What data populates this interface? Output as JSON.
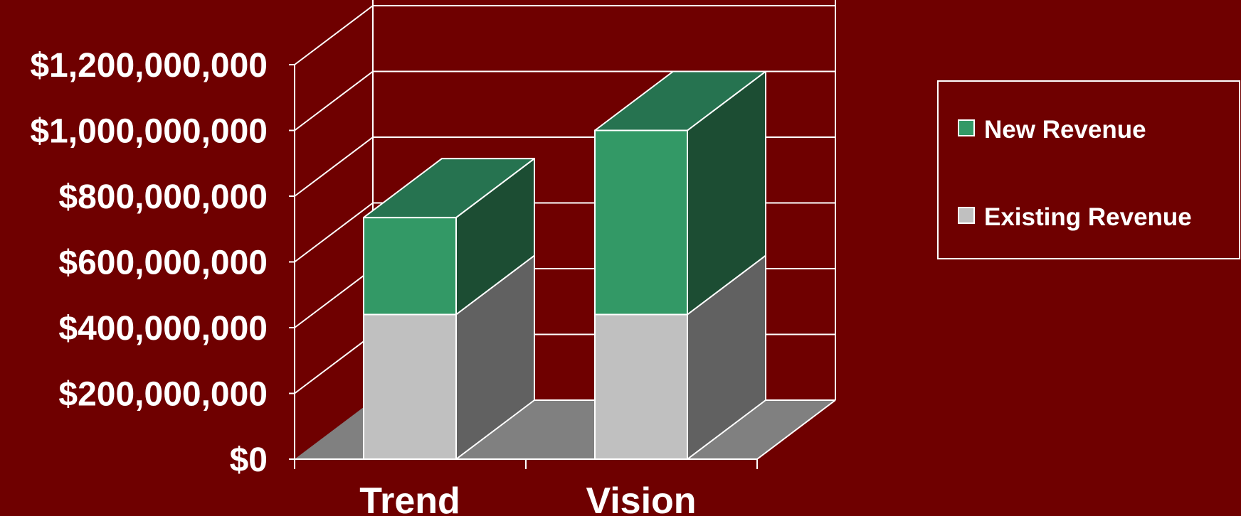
{
  "chart_data": {
    "type": "bar",
    "stacked": true,
    "three_d": true,
    "categories": [
      "Trend",
      "Vision"
    ],
    "series": [
      {
        "name": "Existing Revenue",
        "values": [
          440000000,
          440000000
        ],
        "color": "#c0c0c0",
        "side_color": "#616161"
      },
      {
        "name": "New Revenue",
        "values": [
          295000000,
          560000000
        ],
        "color": "#339966",
        "side_color": "#1c4d33",
        "top_color": "#267350"
      }
    ],
    "ylim": [
      0,
      1200000000
    ],
    "yticks": [
      0,
      200000000,
      400000000,
      600000000,
      800000000,
      1000000000,
      1200000000
    ],
    "ytick_labels": [
      "$0",
      "$200,000,000",
      "$400,000,000",
      "$600,000,000",
      "$800,000,000",
      "$1,000,000,000",
      "$1,200,000,000"
    ],
    "title": "",
    "xlabel": "",
    "ylabel": "",
    "grid": true,
    "legend": {
      "placement": "right",
      "entries": [
        "New Revenue",
        "Existing Revenue"
      ]
    },
    "colors": {
      "background": "#6f0000",
      "floor": "#808080",
      "grid": "#ffffff"
    }
  }
}
